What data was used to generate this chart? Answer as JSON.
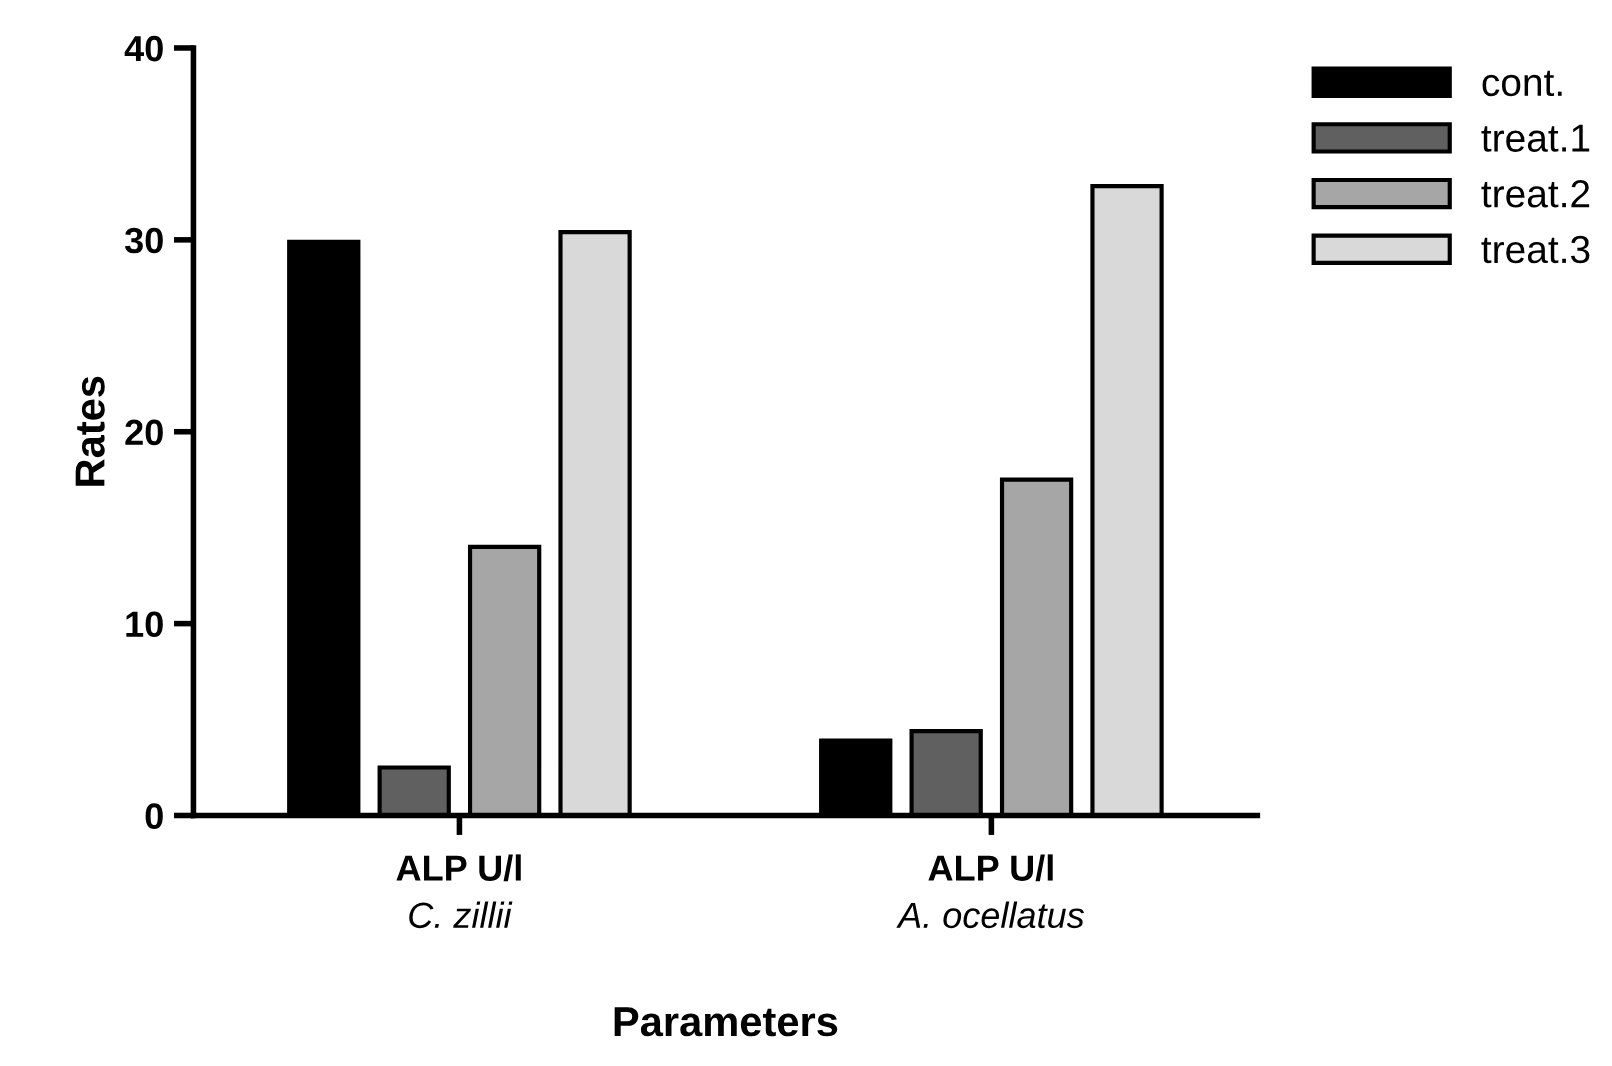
{
  "chart_data": {
    "type": "bar",
    "xlabel": "Parameters",
    "ylabel": "Rates",
    "categories": [
      "ALP U/l\nC. zillii",
      "ALP U/l\nA. ocellatus"
    ],
    "series": [
      {
        "name": "cont.",
        "color": "#000000",
        "values": [
          29.9,
          3.9
        ]
      },
      {
        "name": "treat.1",
        "color": "#606060",
        "values": [
          2.5,
          4.4
        ]
      },
      {
        "name": "treat.2",
        "color": "#a6a6a6",
        "values": [
          14.0,
          17.5
        ]
      },
      {
        "name": "treat.3",
        "color": "#d9d9d9",
        "values": [
          30.4,
          32.8
        ]
      }
    ],
    "ylim": [
      0,
      40
    ],
    "yticks": [
      0,
      10,
      20,
      30,
      40
    ],
    "grid": false,
    "legend": "top right"
  }
}
